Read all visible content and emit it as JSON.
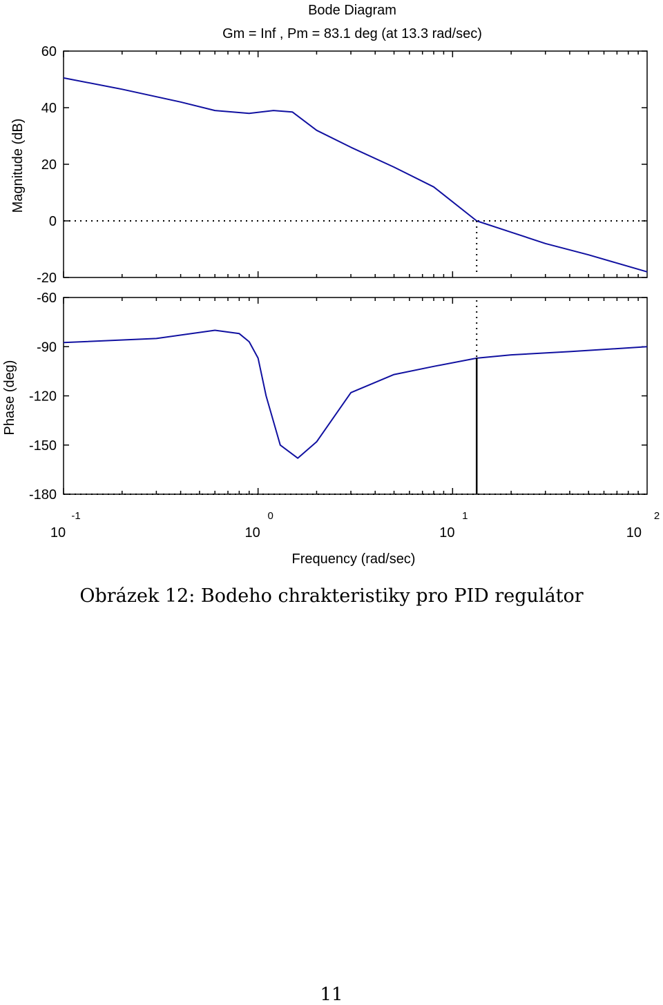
{
  "chart_data": {
    "type": "line",
    "title": "Bode Diagram",
    "subtitle": "Gm = Inf ,  Pm = 83.1 deg (at 13.3 rad/sec)",
    "xlabel": "Frequency  (rad/sec)",
    "x_scale": "log",
    "xlim": [
      0.1,
      100
    ],
    "x_ticks": [
      {
        "value": 0.1,
        "base": "10",
        "exponent": "-1"
      },
      {
        "value": 1,
        "base": "10",
        "exponent": "0"
      },
      {
        "value": 10,
        "base": "10",
        "exponent": "1"
      },
      {
        "value": 100,
        "base": "10",
        "exponent": "2"
      }
    ],
    "series_color": "#1010a0",
    "crossover_frequency": 13.3,
    "phase_margin_deg": 83.1,
    "magnitude": {
      "ylabel": "Magnitude (dB)",
      "ylim": [
        -20,
        60
      ],
      "yticks": [
        "60",
        "40",
        "20",
        "0",
        "-20"
      ],
      "reference_line": 0,
      "x": [
        0.1,
        0.2,
        0.4,
        0.6,
        0.9,
        1.2,
        1.5,
        2,
        3,
        5,
        8,
        13.3,
        20,
        30,
        50,
        100
      ],
      "y": [
        50.5,
        46.5,
        42,
        39,
        38,
        39,
        38.5,
        32,
        26,
        19,
        12,
        0,
        -4,
        -8,
        -12,
        -18
      ]
    },
    "phase": {
      "ylabel": "Phase (deg)",
      "ylim": [
        -180,
        -60
      ],
      "yticks": [
        "-60",
        "-90",
        "-120",
        "-150",
        "-180"
      ],
      "reference_line": -180,
      "x": [
        0.1,
        0.3,
        0.6,
        0.8,
        0.9,
        1,
        1.1,
        1.3,
        1.6,
        2,
        3,
        5,
        8,
        13.3,
        20,
        40,
        100
      ],
      "y": [
        -87.5,
        -85,
        -80,
        -82,
        -87,
        -97,
        -120,
        -150,
        -158,
        -148,
        -118,
        -107,
        -102,
        -97,
        -95,
        -93,
        -90
      ]
    }
  },
  "caption": "Obrázek 12: Bodeho chrakteristiky pro PID regulátor",
  "page_number": "11"
}
